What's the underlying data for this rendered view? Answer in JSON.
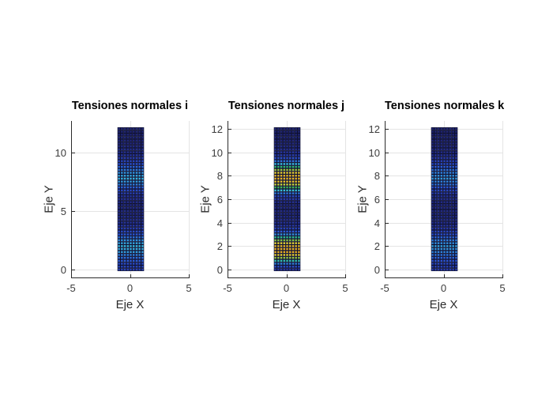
{
  "figure": {
    "background": "#ffffff",
    "axis_color": "#2b2b2b",
    "grid_color": "#e4e4e4",
    "tick_label_color": "#3c3c3c"
  },
  "colormap": {
    "marker_edge": "#0e1030",
    "stops": [
      [
        0.0,
        "#1d1f62"
      ],
      [
        0.12,
        "#2838a6"
      ],
      [
        0.25,
        "#2b55d8"
      ],
      [
        0.38,
        "#2f86e0"
      ],
      [
        0.47,
        "#38c0e4"
      ],
      [
        0.56,
        "#2ebfa2"
      ],
      [
        0.66,
        "#30b15e"
      ],
      [
        0.76,
        "#8fc342"
      ],
      [
        0.86,
        "#e9e338"
      ],
      [
        1.0,
        "#e9af20"
      ]
    ]
  },
  "chart_data": [
    {
      "type": "scatter",
      "title": "Tensiones normales i",
      "xlabel": "Eje X",
      "ylabel": "Eje Y",
      "xlim": [
        -5,
        5
      ],
      "ylim": [
        -0.67,
        12.67
      ],
      "xticks": [
        -5,
        0,
        5
      ],
      "yticks": [
        0,
        5,
        10
      ],
      "grid": true,
      "points_grid": {
        "x_min": -1,
        "x_max": 1,
        "y_min": 0,
        "y_max": 12,
        "step": 0.25
      },
      "intensity_profile": [
        [
          0,
          0.16
        ],
        [
          0.5,
          0.22
        ],
        [
          1,
          0.32
        ],
        [
          1.5,
          0.42
        ],
        [
          2,
          0.47
        ],
        [
          2.5,
          0.4
        ],
        [
          3,
          0.26
        ],
        [
          3.5,
          0.15
        ],
        [
          4.2,
          0.08
        ],
        [
          5.5,
          0.06
        ],
        [
          6.2,
          0.1
        ],
        [
          6.8,
          0.22
        ],
        [
          7.3,
          0.38
        ],
        [
          7.8,
          0.46
        ],
        [
          8.3,
          0.4
        ],
        [
          8.8,
          0.28
        ],
        [
          9.4,
          0.15
        ],
        [
          10,
          0.08
        ],
        [
          11,
          0.04
        ],
        [
          12,
          0.03
        ]
      ]
    },
    {
      "type": "scatter",
      "title": "Tensiones normales j",
      "xlabel": "Eje X",
      "ylabel": "Eje Y",
      "xlim": [
        -5,
        5
      ],
      "ylim": [
        -0.67,
        12.67
      ],
      "xticks": [
        -5,
        0,
        5
      ],
      "yticks": [
        0,
        2,
        4,
        6,
        8,
        10,
        12
      ],
      "grid": true,
      "points_grid": {
        "x_min": -1,
        "x_max": 1,
        "y_min": 0,
        "y_max": 12,
        "step": 0.25
      },
      "intensity_profile": [
        [
          0,
          0.1
        ],
        [
          0.4,
          0.28
        ],
        [
          0.8,
          0.58
        ],
        [
          1.1,
          0.86
        ],
        [
          1.5,
          1.0
        ],
        [
          1.9,
          1.0
        ],
        [
          2.3,
          0.88
        ],
        [
          2.7,
          0.62
        ],
        [
          3.1,
          0.32
        ],
        [
          3.6,
          0.14
        ],
        [
          4.3,
          0.07
        ],
        [
          5.6,
          0.06
        ],
        [
          6.2,
          0.18
        ],
        [
          6.7,
          0.45
        ],
        [
          7.1,
          0.75
        ],
        [
          7.5,
          0.95
        ],
        [
          7.9,
          1.0
        ],
        [
          8.3,
          0.9
        ],
        [
          8.7,
          0.66
        ],
        [
          9.1,
          0.4
        ],
        [
          9.6,
          0.17
        ],
        [
          10.2,
          0.08
        ],
        [
          11,
          0.04
        ],
        [
          12,
          0.03
        ]
      ]
    },
    {
      "type": "scatter",
      "title": "Tensiones normales k",
      "xlabel": "Eje X",
      "ylabel": "Eje Y",
      "xlim": [
        -5,
        5
      ],
      "ylim": [
        -0.67,
        12.67
      ],
      "xticks": [
        -5,
        0,
        5
      ],
      "yticks": [
        0,
        2,
        4,
        6,
        8,
        10,
        12
      ],
      "grid": true,
      "points_grid": {
        "x_min": -1,
        "x_max": 1,
        "y_min": 0,
        "y_max": 12,
        "step": 0.25
      },
      "intensity_profile": [
        [
          0,
          0.14
        ],
        [
          0.5,
          0.2
        ],
        [
          1,
          0.29
        ],
        [
          1.5,
          0.38
        ],
        [
          2,
          0.43
        ],
        [
          2.5,
          0.36
        ],
        [
          3,
          0.23
        ],
        [
          3.5,
          0.13
        ],
        [
          4.2,
          0.07
        ],
        [
          5.5,
          0.06
        ],
        [
          6.2,
          0.09
        ],
        [
          6.8,
          0.2
        ],
        [
          7.3,
          0.34
        ],
        [
          7.8,
          0.42
        ],
        [
          8.3,
          0.37
        ],
        [
          8.8,
          0.26
        ],
        [
          9.4,
          0.14
        ],
        [
          10,
          0.07
        ],
        [
          11,
          0.04
        ],
        [
          12,
          0.03
        ]
      ]
    }
  ]
}
